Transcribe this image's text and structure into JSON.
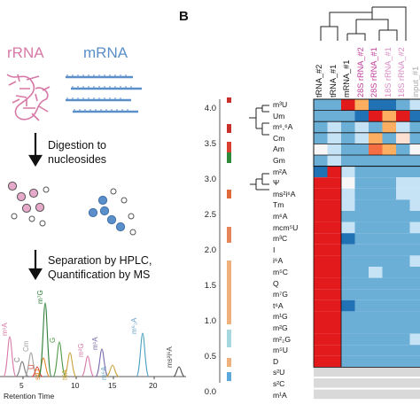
{
  "panel_a": {
    "rrna_label": "rRNA",
    "mrna_label": "mRNA",
    "poly_a": "AAAAAA",
    "digestion_text": "Digestion to",
    "digestion_text_2": "nucleosides",
    "separation_text": "Separation by HPLC,",
    "separation_text_2": "Quantification by MS",
    "axis_label": "Retention Time",
    "ticks": [
      "5",
      "10",
      "15",
      "20"
    ],
    "peaks": [
      {
        "label": "m¹A",
        "color": "#d779a6"
      },
      {
        "label": "C",
        "color": "#7a7a7a"
      },
      {
        "label": "Cm",
        "color": "#9e9e9e"
      },
      {
        "label": "U",
        "color": "#e0463c"
      },
      {
        "label": "s²U",
        "color": "#e38a2c"
      },
      {
        "label": "m⁷G",
        "color": "#2f7f3a"
      },
      {
        "label": "G",
        "color": "#4f9a4a"
      },
      {
        "label": "t6A",
        "color": "#c9a23a"
      },
      {
        "label": "m²G",
        "color": "#d779a6"
      },
      {
        "label": "m¹A",
        "color": "#7a6aa8"
      },
      {
        "label": "m⁶A",
        "color": "#6aa3c9"
      },
      {
        "label": "m⁶₂A",
        "color": "#6aa3c9"
      },
      {
        "label": "ms²i⁶A",
        "color": "#4a4a4a"
      }
    ]
  },
  "panel_b": {
    "label": "B",
    "scale_ticks": [
      "4.0",
      "3.5",
      "3.0",
      "2.5",
      "2.0",
      "1.5",
      "1.0",
      "0.5",
      "0.0"
    ],
    "columns": [
      {
        "label": "tRNA_#2",
        "color": "#111111"
      },
      {
        "label": "tRNA_#1",
        "color": "#111111"
      },
      {
        "label": "mRNA_#1",
        "color": "#111111"
      },
      {
        "label": "28S rRNA_#2",
        "color": "#c0399a"
      },
      {
        "label": "28S rRNA_#1",
        "color": "#c0399a"
      },
      {
        "label": "18S rRNA_#1",
        "color": "#d98ac4"
      },
      {
        "label": "18S rRNA_#2",
        "color": "#d98ac4"
      },
      {
        "label": "input_#1",
        "color": "#aaaaaa"
      },
      {
        "label": "input_#2",
        "color": "#aaaaaa"
      }
    ],
    "rows": [
      "m³U",
      "Um",
      "m⁶,⁶A",
      "Cm",
      "Am",
      "Gm",
      "m²A",
      "Ψ",
      "ms²i⁶A",
      "Tm",
      "m⁶A",
      "mcm⁵U",
      "m³C",
      "I",
      "i⁶A",
      "m⁵C",
      "Q",
      "m⁷G",
      "t⁶A",
      "m¹G",
      "m²G",
      "m²₂G",
      "m⁵U",
      "D",
      "s²U",
      "s²C",
      "m¹A"
    ]
  }
}
